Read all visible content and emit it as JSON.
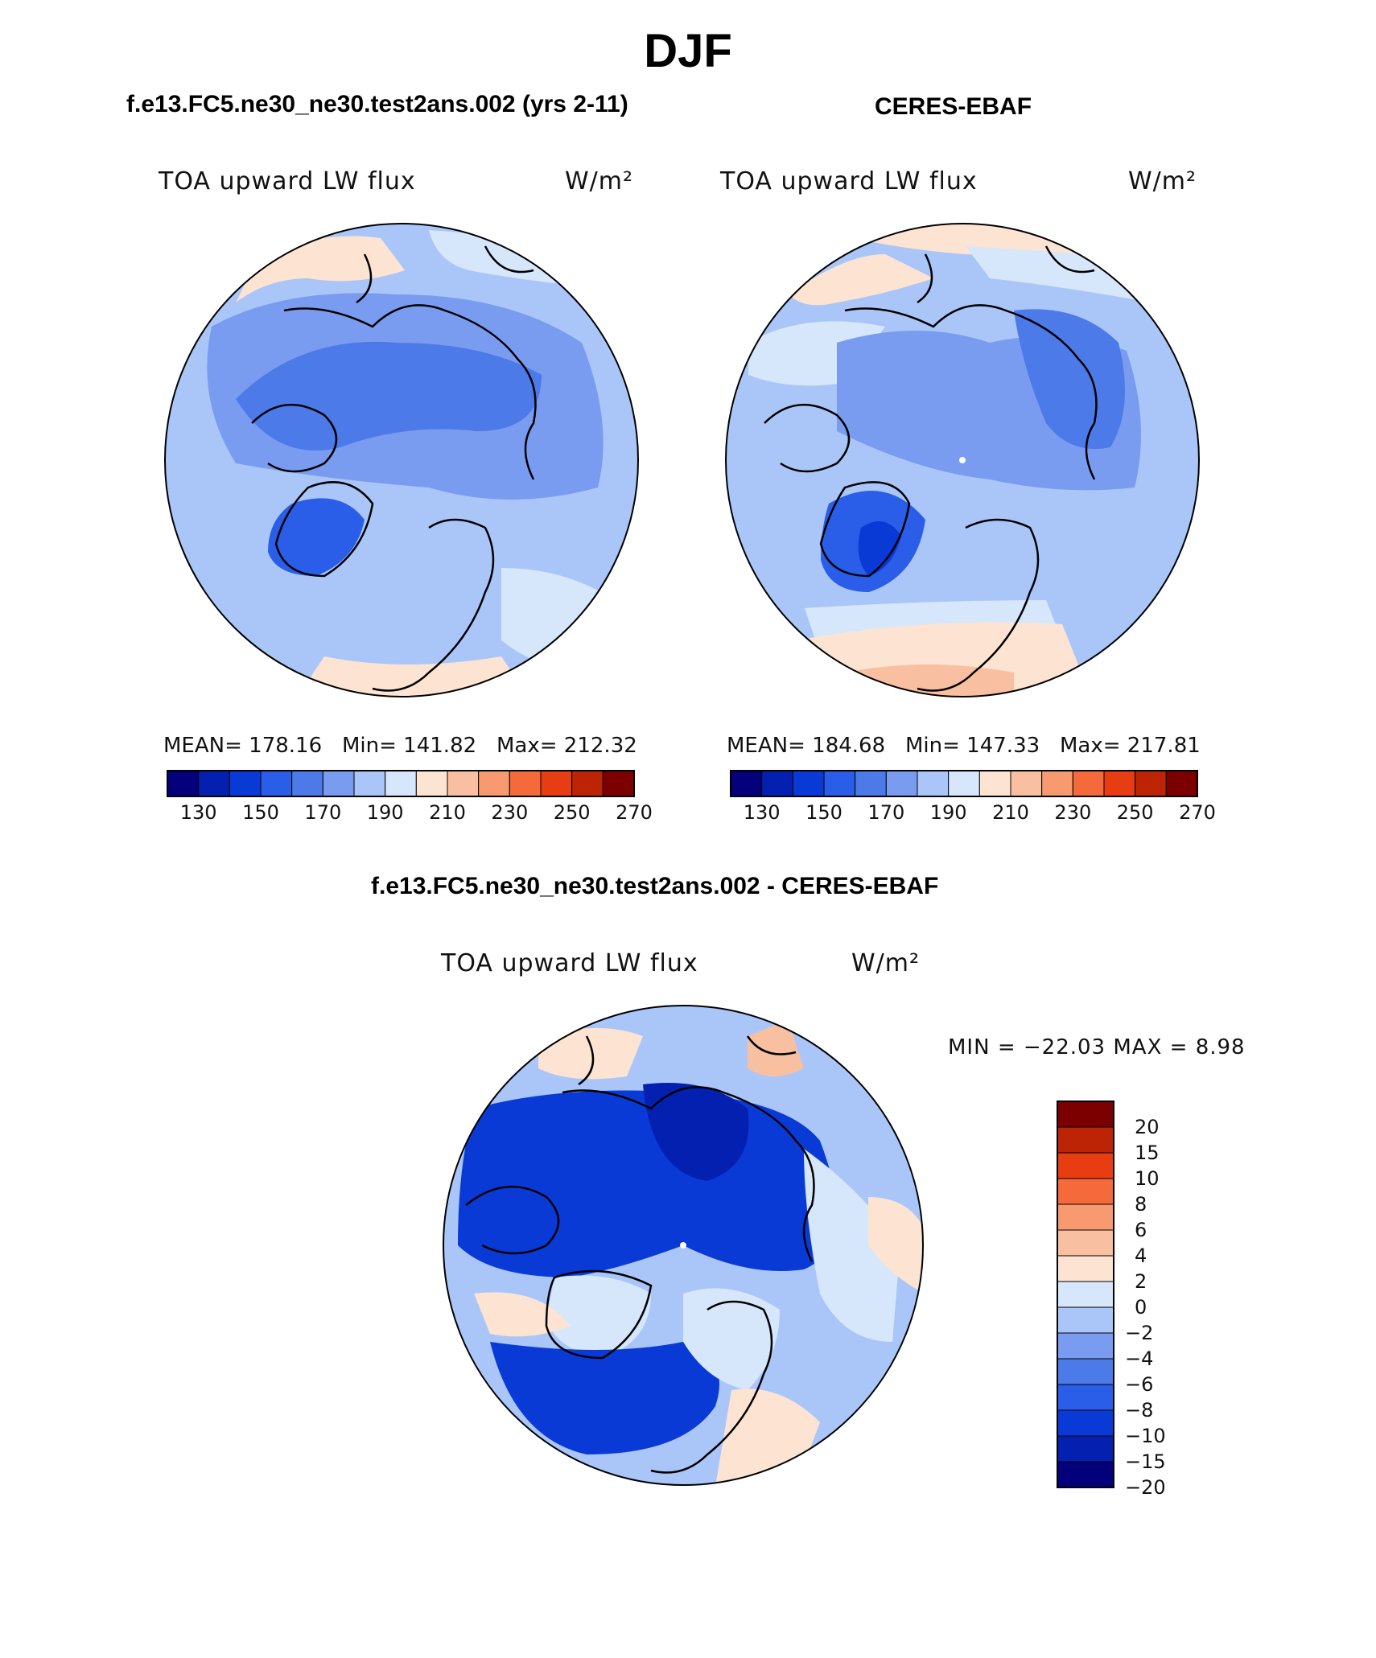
{
  "figure": {
    "title": "DJF"
  },
  "chart_data": [
    {
      "type": "heatmap",
      "projection": "north-polar-stereographic",
      "title": "f.e13.FC5.ne30_ne30.test2ans.002 (yrs 2-11)",
      "variable": "TOA upward LW flux",
      "units": "W/m²",
      "stats": {
        "mean_label": "MEAN= 178.16",
        "min_label": "Min= 141.82",
        "max_label": "Max= 212.32",
        "mean": 178.16,
        "min": 141.82,
        "max": 212.32
      },
      "colorbar": {
        "orientation": "horizontal",
        "levels": [
          130,
          140,
          150,
          160,
          170,
          180,
          190,
          200,
          210,
          220,
          230,
          240,
          250,
          260,
          270
        ],
        "tick_labels": [
          "130",
          "150",
          "170",
          "190",
          "210",
          "230",
          "250",
          "270"
        ],
        "colors": [
          "#04007c",
          "#0320b0",
          "#0a3ad6",
          "#2a5ee8",
          "#4c7ae8",
          "#7a9cf0",
          "#aac6f8",
          "#d6e6fb",
          "#fde4d2",
          "#f8c0a0",
          "#f79a70",
          "#f46a3a",
          "#e83c12",
          "#bd2406",
          "#7c0000"
        ]
      }
    },
    {
      "type": "heatmap",
      "projection": "north-polar-stereographic",
      "title": "CERES-EBAF",
      "variable": "TOA upward LW flux",
      "units": "W/m²",
      "stats": {
        "mean_label": "MEAN= 184.68",
        "min_label": "Min= 147.33",
        "max_label": "Max= 217.81",
        "mean": 184.68,
        "min": 147.33,
        "max": 217.81
      },
      "colorbar": {
        "orientation": "horizontal",
        "levels": [
          130,
          140,
          150,
          160,
          170,
          180,
          190,
          200,
          210,
          220,
          230,
          240,
          250,
          260,
          270
        ],
        "tick_labels": [
          "130",
          "150",
          "170",
          "190",
          "210",
          "230",
          "250",
          "270"
        ],
        "colors": [
          "#04007c",
          "#0320b0",
          "#0a3ad6",
          "#2a5ee8",
          "#4c7ae8",
          "#7a9cf0",
          "#aac6f8",
          "#d6e6fb",
          "#fde4d2",
          "#f8c0a0",
          "#f79a70",
          "#f46a3a",
          "#e83c12",
          "#bd2406",
          "#7c0000"
        ]
      }
    },
    {
      "type": "heatmap",
      "projection": "north-polar-stereographic",
      "title": "f.e13.FC5.ne30_ne30.test2ans.002 - CERES-EBAF",
      "variable": "TOA upward LW flux",
      "units": "W/m²",
      "stats": {
        "minmax_label": "MIN = −22.03 MAX =    8.98",
        "min": -22.03,
        "max": 8.98
      },
      "colorbar": {
        "orientation": "vertical",
        "levels": [
          -20,
          -15,
          -10,
          -8,
          -6,
          -4,
          -2,
          0,
          2,
          4,
          6,
          8,
          10,
          15,
          20
        ],
        "tick_labels": [
          "20",
          "15",
          "10",
          "8",
          "6",
          "4",
          "2",
          "0",
          "−2",
          "−4",
          "−6",
          "−8",
          "−10",
          "−15",
          "−20"
        ],
        "colors": [
          "#7c0000",
          "#bd2406",
          "#e83c12",
          "#f46a3a",
          "#f79a70",
          "#f8c0a0",
          "#fde4d2",
          "#d6e6fb",
          "#aac6f8",
          "#7a9cf0",
          "#4c7ae8",
          "#2a5ee8",
          "#0a3ad6",
          "#0320b0",
          "#04007c"
        ]
      }
    }
  ]
}
